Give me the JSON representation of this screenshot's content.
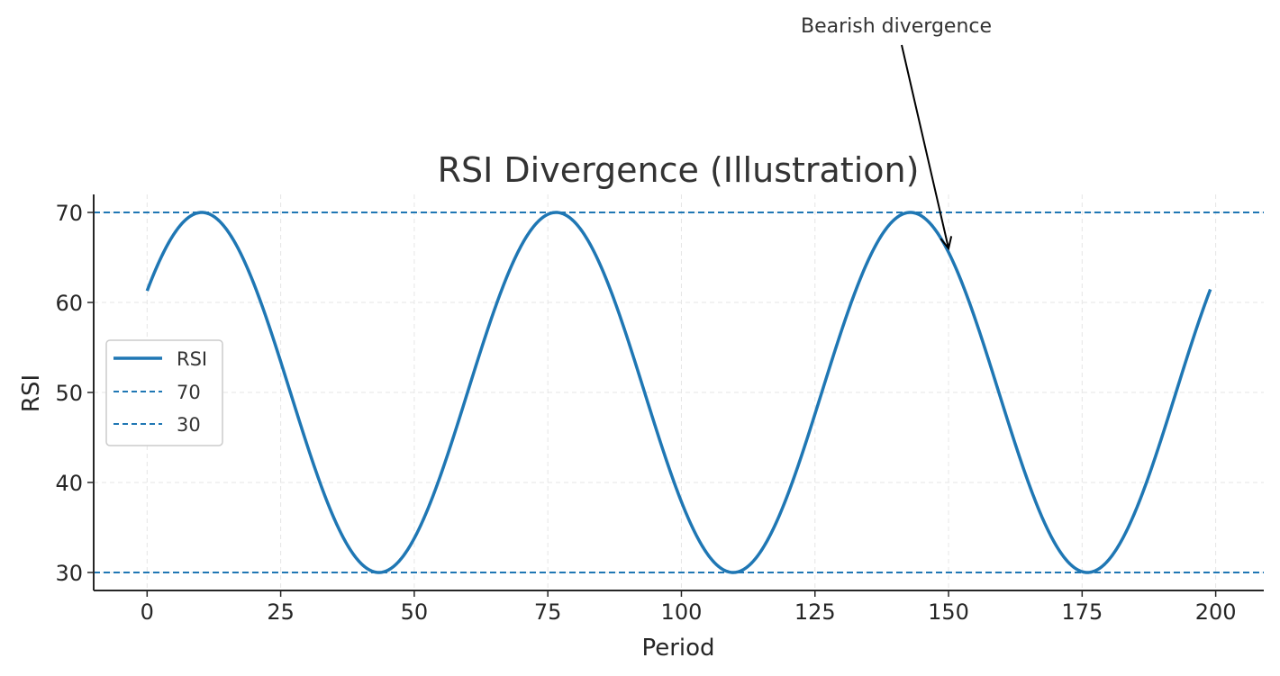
{
  "chart_data": {
    "type": "line",
    "title": "RSI Divergence (Illustration)",
    "xlabel": "Period",
    "ylabel": "RSI",
    "xlim": [
      -10,
      209
    ],
    "ylim": [
      28,
      72
    ],
    "x_ticks": [
      0,
      25,
      50,
      75,
      100,
      125,
      150,
      175,
      200
    ],
    "y_ticks": [
      30,
      40,
      50,
      60,
      70
    ],
    "grid": true,
    "legend_position": "center-left",
    "series": [
      {
        "name": "RSI",
        "color": "#1f77b4",
        "function": "50 + 20*sin(2*pi*x/66.3 + 0.6)",
        "x_range": [
          0,
          199
        ],
        "x": [
          0,
          10,
          27,
          43,
          60,
          77,
          93,
          110,
          126,
          143,
          150,
          160,
          176,
          190,
          199
        ],
        "values": [
          61.3,
          70,
          50.1,
          30,
          50.5,
          70,
          51.0,
          30,
          49.1,
          70,
          65.9,
          53.6,
          30,
          45.8,
          61.3
        ]
      }
    ],
    "hlines": [
      {
        "name": "70",
        "value": 70,
        "color": "#1f77b4",
        "style": "dashed"
      },
      {
        "name": "30",
        "value": 30,
        "color": "#1f77b4",
        "style": "dashed"
      }
    ],
    "annotations": [
      {
        "text": "Bearish divergence",
        "x": 150,
        "y": 66
      }
    ]
  }
}
